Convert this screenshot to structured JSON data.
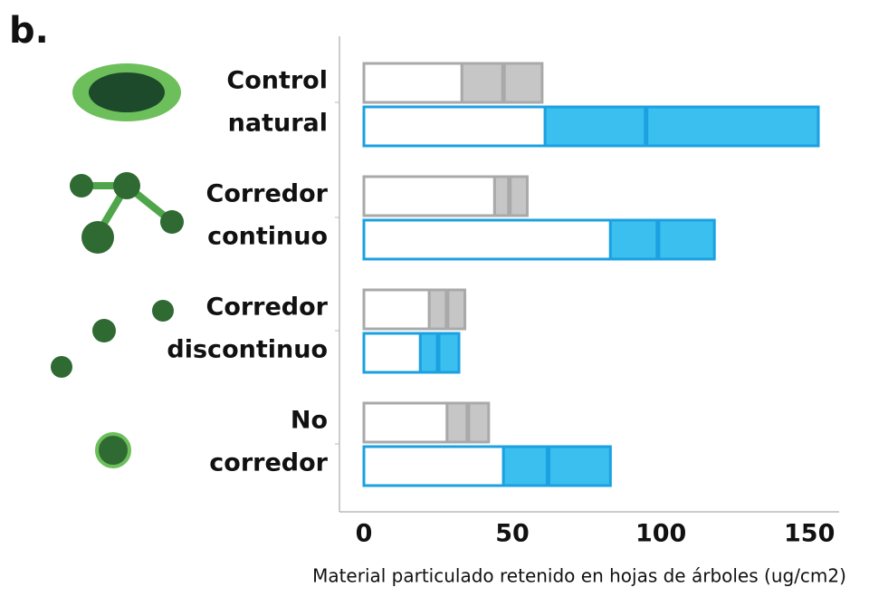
{
  "chart_data": {
    "type": "box",
    "title": "b.",
    "categories": [
      [
        "Control",
        "natural"
      ],
      [
        "Corredor",
        "continuo"
      ],
      [
        "Corredor",
        "discontinuo"
      ],
      [
        "No",
        "corredor"
      ]
    ],
    "series": [
      {
        "color": "#c6c6c6",
        "edge": "#a9a9a9",
        "q1": [
          33,
          44,
          22,
          28
        ],
        "median": [
          47,
          49,
          28,
          35
        ],
        "q3": [
          60,
          55,
          34,
          42
        ]
      },
      {
        "color": "#3bbfef",
        "edge": "#1ba1e2",
        "q1": [
          61,
          83,
          19,
          47
        ],
        "median": [
          95,
          99,
          25,
          62
        ],
        "q3": [
          153,
          118,
          32,
          83
        ]
      }
    ],
    "xlim": [
      0,
      160
    ],
    "xticks": [
      0,
      50,
      100,
      150
    ],
    "xlabel": "Material particulado retenido en hojas de árboles (ug/cm2)"
  }
}
